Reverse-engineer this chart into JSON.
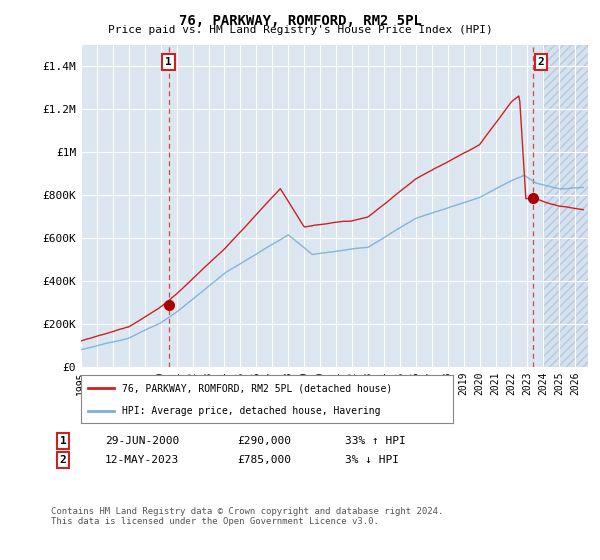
{
  "title": "76, PARKWAY, ROMFORD, RM2 5PL",
  "subtitle": "Price paid vs. HM Land Registry's House Price Index (HPI)",
  "ylabel_ticks": [
    "£0",
    "£200K",
    "£400K",
    "£600K",
    "£800K",
    "£1M",
    "£1.2M",
    "£1.4M"
  ],
  "ytick_values": [
    0,
    200000,
    400000,
    600000,
    800000,
    1000000,
    1200000,
    1400000
  ],
  "ylim": [
    0,
    1500000
  ],
  "xlim_start": 1995.0,
  "xlim_end": 2026.8,
  "background_color": "#ffffff",
  "plot_bg_color": "#dce6f1",
  "grid_color": "#ffffff",
  "hpi_line_color": "#7bafd4",
  "price_line_color": "#cc2222",
  "marker1_date": 2000.49,
  "marker1_price": 290000,
  "marker2_date": 2023.36,
  "marker2_price": 785000,
  "marker_color": "#aa0000",
  "dashed_line_color": "#cc2222",
  "legend_label_red": "76, PARKWAY, ROMFORD, RM2 5PL (detached house)",
  "legend_label_blue": "HPI: Average price, detached house, Havering",
  "table_row1": [
    "1",
    "29-JUN-2000",
    "£290,000",
    "33% ↑ HPI"
  ],
  "table_row2": [
    "2",
    "12-MAY-2023",
    "£785,000",
    "3% ↓ HPI"
  ],
  "footer": "Contains HM Land Registry data © Crown copyright and database right 2024.\nThis data is licensed under the Open Government Licence v3.0.",
  "xtick_years": [
    1995,
    1996,
    1997,
    1998,
    1999,
    2000,
    2001,
    2002,
    2003,
    2004,
    2005,
    2006,
    2007,
    2008,
    2009,
    2010,
    2011,
    2012,
    2013,
    2014,
    2015,
    2016,
    2017,
    2018,
    2019,
    2020,
    2021,
    2022,
    2023,
    2024,
    2025,
    2026
  ],
  "hatch_start": 2024.0,
  "hatch_color": "#c8d8e8"
}
